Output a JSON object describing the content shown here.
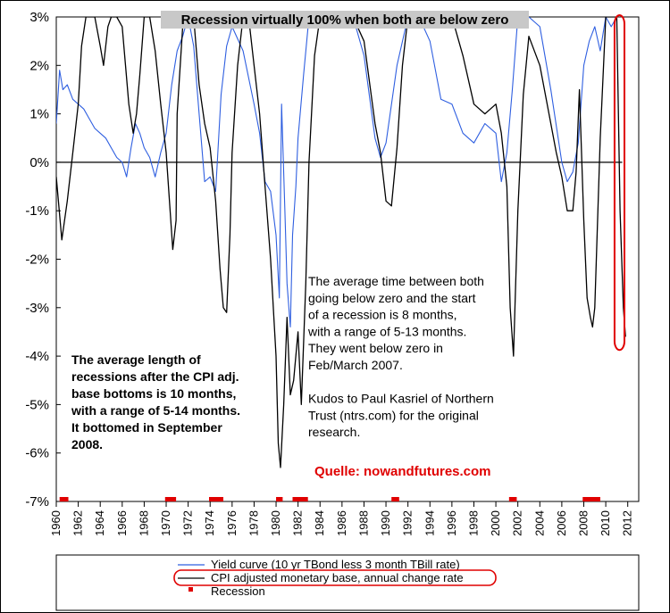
{
  "chart_data": {
    "type": "line",
    "title": "Recession virtually 100% when both are below zero",
    "xlim": [
      1960,
      2013
    ],
    "ylim": [
      -7,
      3
    ],
    "y_ticks": [
      "3%",
      "2%",
      "1%",
      "0%",
      "-1%",
      "-2%",
      "-3%",
      "-4%",
      "-5%",
      "-6%",
      "-7%"
    ],
    "y_tick_values": [
      3,
      2,
      1,
      0,
      -1,
      -2,
      -3,
      -4,
      -5,
      -6,
      -7
    ],
    "x_ticks": [
      "1960",
      "1962",
      "1964",
      "1966",
      "1968",
      "1970",
      "1972",
      "1974",
      "1976",
      "1978",
      "1980",
      "1982",
      "1984",
      "1986",
      "1988",
      "1990",
      "1992",
      "1994",
      "1996",
      "1998",
      "2000",
      "2002",
      "2004",
      "2006",
      "2008",
      "2010",
      "2012"
    ],
    "x_tick_values": [
      1960,
      1962,
      1964,
      1966,
      1968,
      1970,
      1972,
      1974,
      1976,
      1978,
      1980,
      1982,
      1984,
      1986,
      1988,
      1990,
      1992,
      1994,
      1996,
      1998,
      2000,
      2002,
      2004,
      2006,
      2008,
      2010,
      2012
    ],
    "series": [
      {
        "name": "Yield curve (10 yr TBond less 3 month TBill rate)",
        "color": "#2f5fe0",
        "x": [
          1960.0,
          1960.3,
          1960.6,
          1961.0,
          1961.5,
          1962.0,
          1962.5,
          1963.0,
          1963.5,
          1964.0,
          1964.5,
          1965.0,
          1965.5,
          1966.0,
          1966.4,
          1966.8,
          1967.2,
          1967.6,
          1968.0,
          1968.5,
          1969.0,
          1969.5,
          1970.0,
          1970.5,
          1971.0,
          1971.5,
          1972.0,
          1972.5,
          1973.0,
          1973.5,
          1974.0,
          1974.5,
          1975.0,
          1975.5,
          1976.0,
          1977.0,
          1978.0,
          1978.5,
          1979.0,
          1979.5,
          1980.0,
          1980.3,
          1980.5,
          1980.8,
          1981.0,
          1981.3,
          1981.5,
          1981.8,
          1982.0,
          1982.5,
          1983.0,
          1984.0,
          1985.0,
          1986.0,
          1987.0,
          1988.0,
          1989.0,
          1989.5,
          1990.0,
          1991.0,
          1992.0,
          1993.0,
          1994.0,
          1995.0,
          1996.0,
          1997.0,
          1998.0,
          1999.0,
          2000.0,
          2000.5,
          2001.0,
          2001.5,
          2002.0,
          2003.0,
          2004.0,
          2005.0,
          2006.0,
          2006.5,
          2007.0,
          2007.5,
          2008.0,
          2008.5,
          2009.0,
          2009.5,
          2010.0,
          2010.5,
          2011.0
        ],
        "y": [
          0.8,
          1.9,
          1.5,
          1.6,
          1.3,
          1.2,
          1.1,
          0.9,
          0.7,
          0.6,
          0.5,
          0.3,
          0.1,
          0.0,
          -0.3,
          0.3,
          0.8,
          0.6,
          0.3,
          0.1,
          -0.3,
          0.2,
          0.6,
          1.6,
          2.3,
          2.6,
          3.0,
          2.4,
          1.0,
          -0.4,
          -0.3,
          -0.6,
          1.4,
          2.4,
          2.8,
          2.3,
          1.2,
          0.6,
          -0.4,
          -0.6,
          -1.5,
          -2.8,
          1.2,
          -1.0,
          -2.5,
          -3.4,
          -1.5,
          -0.5,
          0.5,
          1.8,
          3.0,
          3.0,
          3.0,
          3.0,
          3.0,
          2.2,
          0.5,
          0.1,
          0.4,
          2.0,
          3.0,
          3.0,
          2.5,
          1.3,
          1.2,
          0.6,
          0.4,
          0.8,
          0.6,
          -0.4,
          0.2,
          1.5,
          3.0,
          3.0,
          2.8,
          1.5,
          0.0,
          -0.4,
          -0.2,
          0.4,
          2.0,
          2.5,
          2.8,
          2.3,
          3.0,
          2.8,
          3.0
        ]
      },
      {
        "name": "CPI adjusted monetary base, annual change rate",
        "color": "#000000",
        "x": [
          1960.0,
          1960.5,
          1961.0,
          1961.5,
          1962.0,
          1962.3,
          1962.7,
          1963.0,
          1963.5,
          1964.0,
          1964.3,
          1964.7,
          1965.0,
          1965.5,
          1966.0,
          1966.3,
          1966.6,
          1967.0,
          1967.3,
          1967.6,
          1968.0,
          1968.5,
          1969.0,
          1969.5,
          1970.0,
          1970.3,
          1970.6,
          1970.9,
          1971.0,
          1971.5,
          1972.0,
          1972.5,
          1973.0,
          1973.5,
          1974.0,
          1974.5,
          1974.9,
          1975.2,
          1975.5,
          1975.8,
          1976.0,
          1976.5,
          1977.0,
          1977.5,
          1978.0,
          1978.5,
          1979.0,
          1979.5,
          1980.0,
          1980.2,
          1980.4,
          1980.7,
          1981.0,
          1981.3,
          1981.6,
          1982.0,
          1982.3,
          1982.7,
          1983.0,
          1983.5,
          1984.0,
          1985.0,
          1986.0,
          1987.0,
          1988.0,
          1989.0,
          1989.5,
          1990.0,
          1990.5,
          1991.0,
          1991.5,
          1992.0,
          1993.0,
          1994.0,
          1995.0,
          1996.0,
          1997.0,
          1998.0,
          1999.0,
          2000.0,
          2000.5,
          2001.0,
          2001.3,
          2001.6,
          2002.0,
          2002.5,
          2003.0,
          2004.0,
          2005.0,
          2005.5,
          2006.0,
          2006.5,
          2007.0,
          2007.3,
          2007.6,
          2008.0,
          2008.3,
          2008.6,
          2008.8,
          2009.0,
          2009.5,
          2010.0,
          2010.5,
          2011.0,
          2011.3,
          2011.6,
          2011.8
        ],
        "y": [
          -0.3,
          -1.6,
          -0.8,
          0.2,
          1.2,
          2.4,
          3.0,
          3.0,
          3.0,
          2.4,
          2.0,
          2.8,
          3.0,
          3.0,
          2.8,
          2.0,
          1.2,
          0.6,
          1.0,
          1.8,
          3.0,
          3.0,
          2.3,
          1.2,
          0.2,
          -0.8,
          -1.8,
          -1.2,
          1.0,
          2.8,
          3.0,
          3.0,
          1.6,
          0.8,
          0.3,
          -0.8,
          -2.2,
          -3.0,
          -3.1,
          -1.5,
          0.2,
          2.0,
          3.0,
          3.0,
          2.0,
          1.0,
          -0.5,
          -2.0,
          -4.0,
          -5.8,
          -6.3,
          -5.0,
          -3.2,
          -4.8,
          -4.5,
          -3.5,
          -5.0,
          -2.5,
          0.0,
          2.2,
          3.0,
          3.0,
          3.0,
          3.0,
          2.5,
          0.8,
          0.2,
          -0.8,
          -0.9,
          0.3,
          2.0,
          3.0,
          3.0,
          3.0,
          3.0,
          3.0,
          2.2,
          1.2,
          1.0,
          1.2,
          0.6,
          -0.5,
          -3.0,
          -4.0,
          -1.0,
          1.4,
          2.6,
          2.0,
          0.8,
          0.2,
          -0.3,
          -1.0,
          -1.0,
          -0.2,
          1.5,
          -1.2,
          -2.8,
          -3.2,
          -3.4,
          -3.0,
          0.5,
          3.0,
          3.0,
          3.0,
          -1.0,
          -3.0,
          -3.6
        ]
      }
    ],
    "recession_periods": [
      [
        1960.3,
        1961.1
      ],
      [
        1969.9,
        1970.9
      ],
      [
        1973.9,
        1975.2
      ],
      [
        1980.0,
        1980.6
      ],
      [
        1981.5,
        1982.9
      ],
      [
        1990.5,
        1991.2
      ],
      [
        2001.2,
        2001.9
      ],
      [
        2007.9,
        2009.5
      ]
    ],
    "recession_level": -7,
    "highlight": {
      "x_range": [
        2010.8,
        2011.7
      ],
      "y_range": [
        -3.8,
        3.0
      ],
      "color": "#e00000"
    },
    "zero_line": true,
    "grid": false
  },
  "annotations": {
    "left_lines": [
      "The average length of",
      "recessions after the CPI adj.",
      "base bottoms is 10 months,",
      "with a range of 5-14 months.",
      "It bottomed in September",
      "2008."
    ],
    "right_lines": [
      "The average time between both",
      "going below zero and the start",
      "of a recession is 8 months,",
      "with a range of 5-13 months.",
      "They went below zero in",
      "Feb/March 2007.",
      "",
      "Kudos to Paul Kasriel of Northern",
      "Trust (ntrs.com) for the original",
      "research."
    ],
    "credit": "Quelle: nowandfutures.com"
  },
  "legend": {
    "items": [
      {
        "label": "Yield curve (10 yr TBond less 3 month TBill rate)",
        "color": "#2f5fe0",
        "marker": "line"
      },
      {
        "label": "CPI adjusted monetary base, annual change rate",
        "color": "#000000",
        "marker": "line",
        "highlighted": true
      },
      {
        "label": "Recession",
        "color": "#e00000",
        "marker": "square"
      }
    ]
  }
}
